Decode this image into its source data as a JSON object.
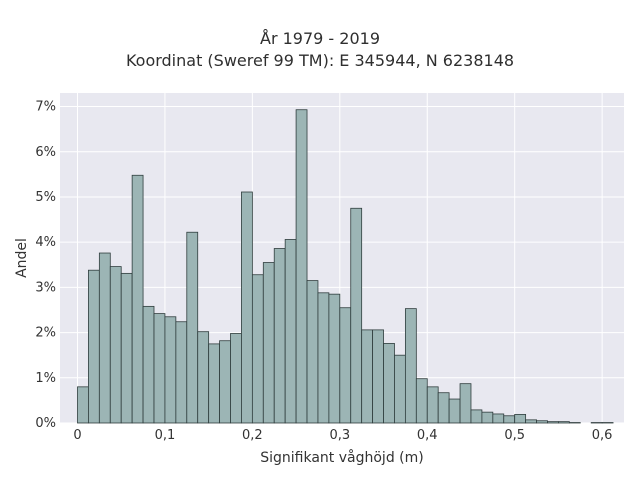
{
  "header": {
    "title_line1": "År 1979 - 2019",
    "title_line2": "Koordinat (Sweref 99 TM): E 345944, N 6238148"
  },
  "chart_data": {
    "type": "bar",
    "title": "År 1979 - 2019",
    "subtitle": "Koordinat (Sweref 99 TM): E 345944, N 6238148",
    "xlabel": "Signifikant våghöjd (m)",
    "ylabel": "Andel",
    "xlim": [
      -0.02,
      0.625
    ],
    "ylim": [
      0,
      7.3
    ],
    "x_ticks": [
      0,
      0.1,
      0.2,
      0.3,
      0.4,
      0.5,
      0.6
    ],
    "x_tick_labels": [
      "0",
      "0,1",
      "0,2",
      "0,3",
      "0,4",
      "0,5",
      "0,6"
    ],
    "y_ticks": [
      0,
      1,
      2,
      3,
      4,
      5,
      6,
      7
    ],
    "y_tick_labels": [
      "0%",
      "1%",
      "2%",
      "3%",
      "4%",
      "5%",
      "6%",
      "7%"
    ],
    "bin_width": 0.0125,
    "bin_start": 0,
    "values": [
      0.8,
      3.38,
      3.76,
      3.46,
      3.31,
      5.48,
      2.58,
      2.42,
      2.35,
      2.24,
      4.22,
      2.02,
      1.75,
      1.82,
      1.98,
      5.11,
      3.28,
      3.55,
      3.86,
      4.06,
      6.93,
      3.15,
      2.88,
      2.85,
      2.55,
      4.75,
      2.06,
      2.06,
      1.76,
      1.5,
      2.53,
      0.98,
      0.8,
      0.67,
      0.53,
      0.87,
      0.29,
      0.24,
      0.2,
      0.16,
      0.19,
      0.07,
      0.05,
      0.03,
      0.03,
      0.01,
      0.0,
      0.01,
      0.01
    ],
    "grid": true,
    "colors": {
      "bar_fill": "#9cb5b5",
      "bar_edge": "#2f3d3d",
      "plot_bg": "#e8e8f0",
      "grid": "#ffffff"
    }
  }
}
